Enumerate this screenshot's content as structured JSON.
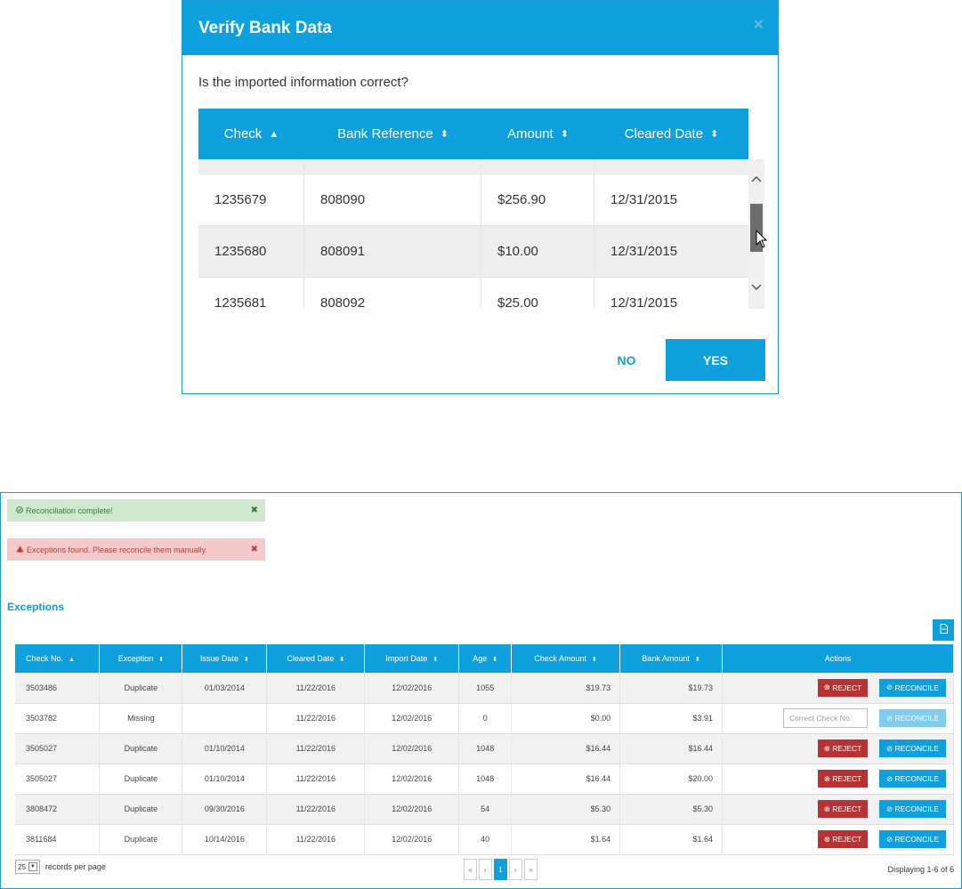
{
  "modal": {
    "title": "Verify Bank Data",
    "close_icon": "×",
    "question": "Is the imported information correct?",
    "columns": [
      {
        "label": "Check",
        "sort": "▲"
      },
      {
        "label": "Bank Reference",
        "sort": "⬍"
      },
      {
        "label": "Amount",
        "sort": "⬍"
      },
      {
        "label": "Cleared Date",
        "sort": "⬍"
      }
    ],
    "rows": [
      {
        "check": "1235679",
        "ref": "808090",
        "amount": "$256.90",
        "date": "12/31/2015"
      },
      {
        "check": "1235680",
        "ref": "808091",
        "amount": "$10.00",
        "date": "12/31/2015"
      },
      {
        "check": "1235681",
        "ref": "808092",
        "amount": "$25.00",
        "date": "12/31/2015"
      }
    ],
    "no_label": "NO",
    "yes_label": "YES"
  },
  "alerts": {
    "success": "Reconciliation complete!",
    "danger": "Exceptions found. Please reconcile them manually."
  },
  "exceptions": {
    "title": "Exceptions",
    "columns": [
      "Check No.",
      "Exception",
      "Issue Date",
      "Cleared Date",
      "Import Date",
      "Age",
      "Check Amount",
      "Bank Amount",
      "Actions"
    ],
    "rows": [
      {
        "check_no": "3503486",
        "exception": "Duplicate",
        "issue": "01/03/2014",
        "cleared": "11/22/2016",
        "import": "12/02/2016",
        "age": "1055",
        "check_amt": "$19.73",
        "bank_amt": "$19.73",
        "mode": "buttons"
      },
      {
        "check_no": "3503782",
        "exception": "Missing",
        "issue": "",
        "cleared": "11/22/2016",
        "import": "12/02/2016",
        "age": "0",
        "check_amt": "$0.00",
        "bank_amt": "$3.91",
        "mode": "input"
      },
      {
        "check_no": "3505027",
        "exception": "Duplicate",
        "issue": "01/10/2014",
        "cleared": "11/22/2016",
        "import": "12/02/2016",
        "age": "1048",
        "check_amt": "$16.44",
        "bank_amt": "$16.44",
        "mode": "buttons"
      },
      {
        "check_no": "3505027",
        "exception": "Duplicate",
        "issue": "01/10/2014",
        "cleared": "11/22/2016",
        "import": "12/02/2016",
        "age": "1048",
        "check_amt": "$16.44",
        "bank_amt": "$20.00",
        "mode": "buttons"
      },
      {
        "check_no": "3808472",
        "exception": "Duplicate",
        "issue": "09/30/2016",
        "cleared": "11/22/2016",
        "import": "12/02/2016",
        "age": "54",
        "check_amt": "$5.30",
        "bank_amt": "$5.30",
        "mode": "buttons"
      },
      {
        "check_no": "3811684",
        "exception": "Duplicate",
        "issue": "10/14/2016",
        "cleared": "11/22/2016",
        "import": "12/02/2016",
        "age": "40",
        "check_amt": "$1.64",
        "bank_amt": "$1.64",
        "mode": "buttons"
      }
    ],
    "reject_label": "REJECT",
    "reconcile_label": "RECONCILE",
    "correct_placeholder": "Correct Check No."
  },
  "footer": {
    "per_page_value": "25",
    "per_page_label": "records per page",
    "pager": [
      "«",
      "‹",
      "1",
      "›",
      "»"
    ],
    "displaying": "Displaying 1-6 of 6"
  },
  "colors": {
    "primary": "#0da0dd",
    "reject": "#b73232",
    "success_bg": "#cfe9cf",
    "danger_bg": "#f4c9c9"
  }
}
